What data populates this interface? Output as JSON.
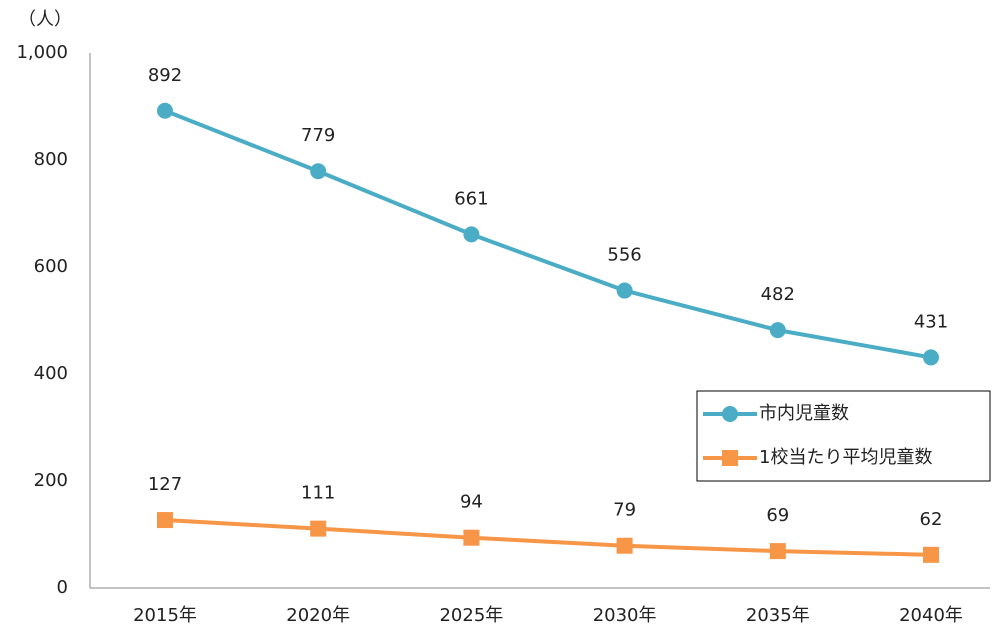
{
  "chart_data": {
    "type": "line",
    "y_unit_label": "（人）",
    "categories": [
      "2015年",
      "2020年",
      "2025年",
      "2030年",
      "2035年",
      "2040年"
    ],
    "series": [
      {
        "name": "市内児童数",
        "color": "#4bacc6",
        "marker": "circle",
        "values": [
          892,
          779,
          661,
          556,
          482,
          431
        ]
      },
      {
        "name": "1校当たり平均児童数",
        "color": "#f79646",
        "marker": "square",
        "values": [
          127,
          111,
          94,
          79,
          69,
          62
        ]
      }
    ],
    "ylim": [
      0,
      1000
    ],
    "yticks": [
      0,
      200,
      400,
      600,
      800,
      {
        "value": 1000,
        "label": "1,000"
      }
    ],
    "grid": false,
    "legend": "right"
  }
}
